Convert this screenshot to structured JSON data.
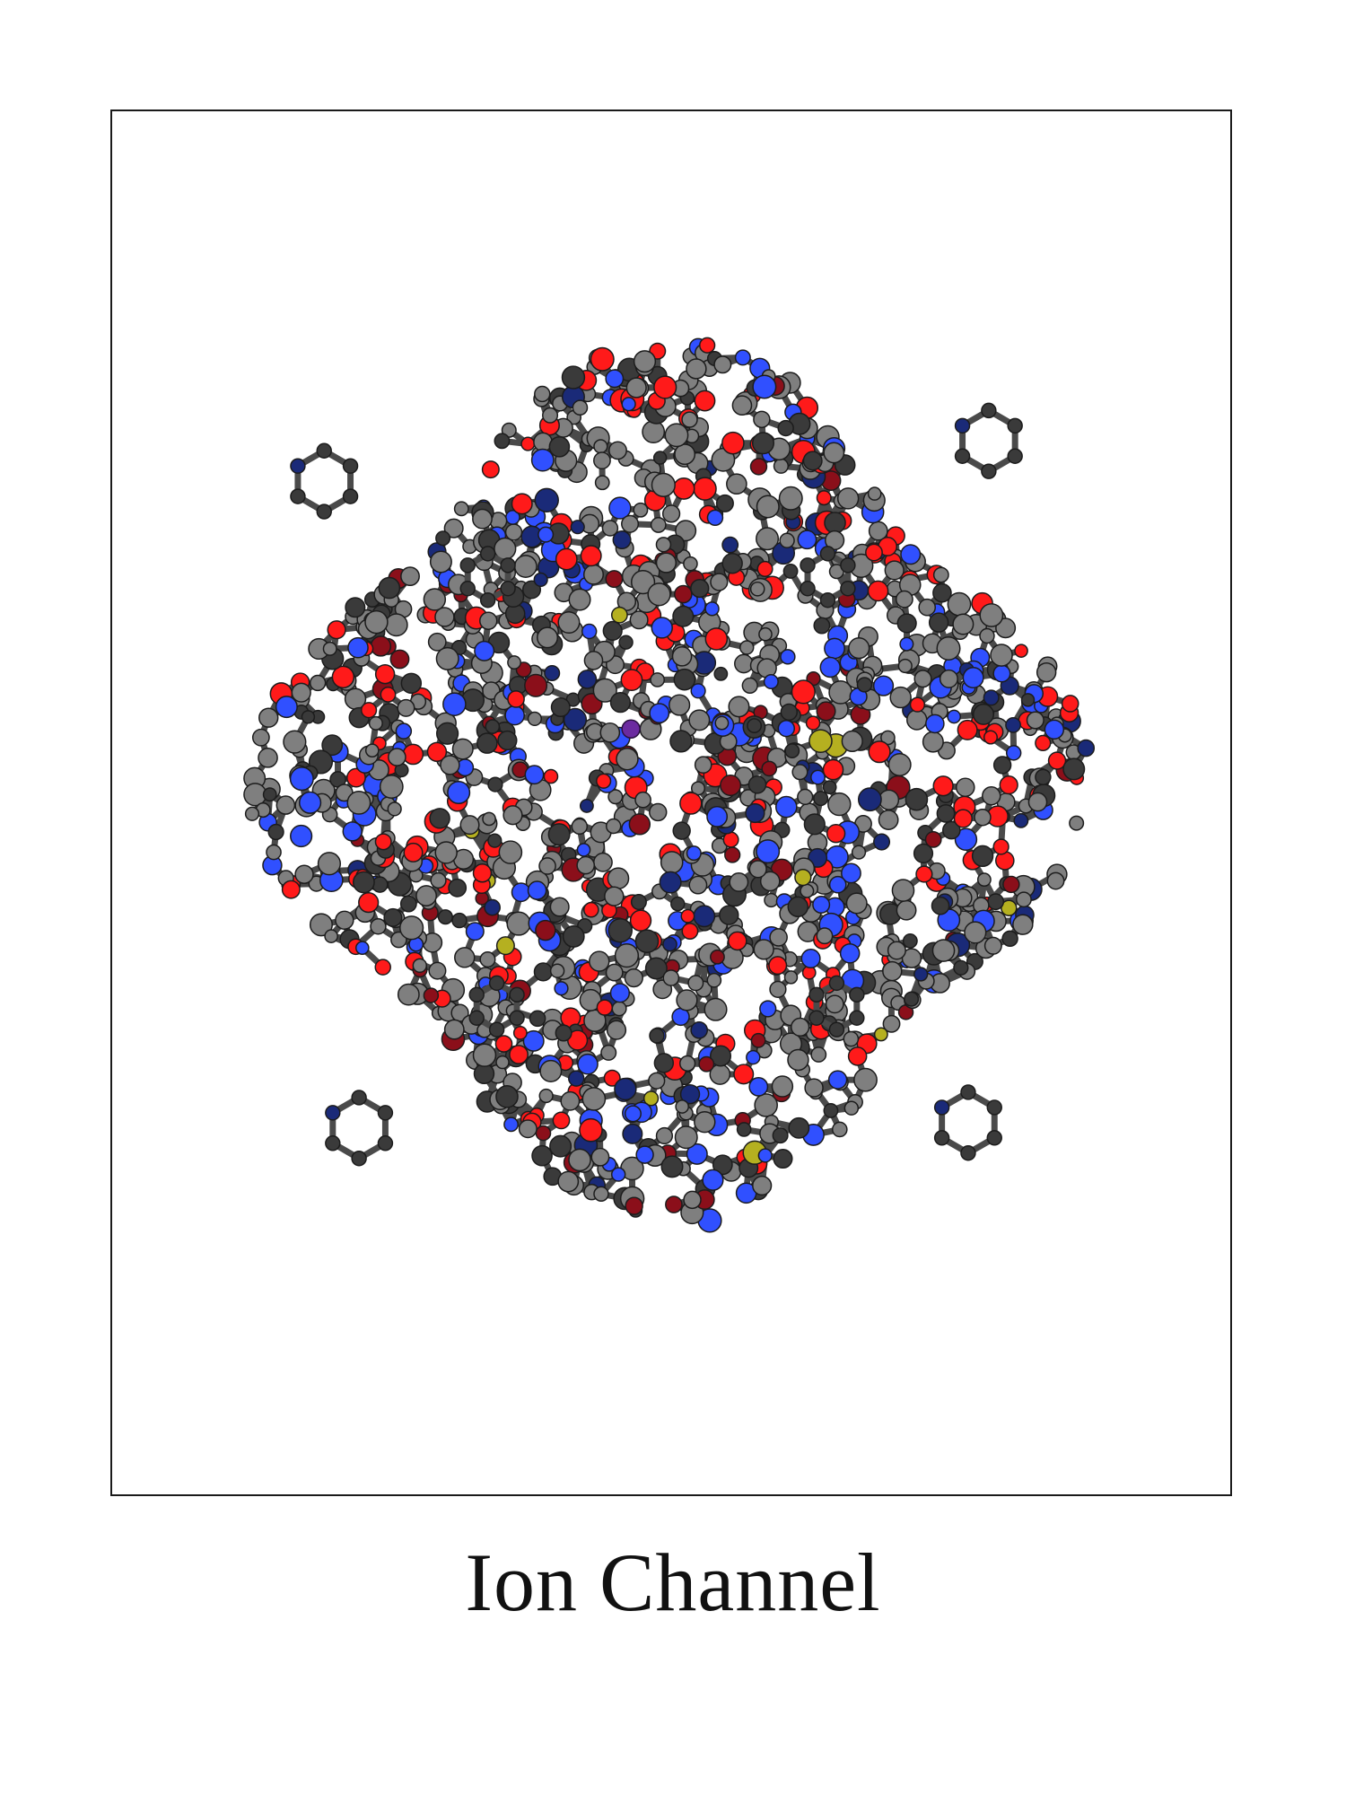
{
  "caption": "Ion Channel",
  "colors": {
    "carbon": "#7f7f7f",
    "carbon_dark": "#3a3a3a",
    "oxygen": "#ff1a1a",
    "oxygen_dark": "#8b0f1a",
    "nitrogen": "#3050ff",
    "nitrogen_dark": "#1a2a78",
    "sulfur": "#b5b020",
    "ion": "#6b2aa0",
    "bond": "#4a4a4a",
    "frame": "#1a1a1a"
  }
}
